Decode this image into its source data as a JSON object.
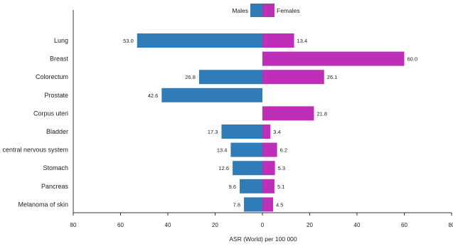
{
  "chart_data": {
    "type": "bar",
    "orientation": "diverging-horizontal",
    "categories": [
      "Lung",
      "Breast",
      "Colorectum",
      "Prostate",
      "Corpus uteri",
      "Bladder",
      "Brain, central nervous system",
      "Stomach",
      "Pancreas",
      "Melanoma of skin"
    ],
    "series": [
      {
        "name": "Males",
        "color": "#2f7cb8",
        "values": [
          53.0,
          0,
          26.8,
          42.6,
          0,
          17.3,
          13.4,
          12.6,
          9.6,
          7.8
        ],
        "labels": [
          "53.0",
          "",
          "26.8",
          "42.6",
          "",
          "17.3",
          "13.4",
          "12.6",
          "9.6",
          "7.8"
        ]
      },
      {
        "name": "Females",
        "color": "#bd2fb6",
        "values": [
          13.4,
          60.0,
          26.1,
          0,
          21.8,
          3.4,
          6.2,
          5.3,
          5.1,
          4.5
        ],
        "labels": [
          "13.4",
          "60.0",
          "26.1",
          "",
          "21.8",
          "3.4",
          "6.2",
          "5.3",
          "5.1",
          "4.5"
        ]
      }
    ],
    "xlim": [
      -80,
      80
    ],
    "x_ticks": [
      -80,
      -60,
      -40,
      -20,
      0,
      20,
      40,
      60,
      80
    ],
    "x_tick_labels": [
      "80",
      "60",
      "40",
      "20",
      "0",
      "20",
      "40",
      "60",
      "80"
    ],
    "xlabel": "ASR (World) per 100 000",
    "ylabel": "",
    "title": "",
    "legend": {
      "position": "top-center",
      "entries": [
        "Males",
        "Females"
      ]
    },
    "grid": false
  }
}
